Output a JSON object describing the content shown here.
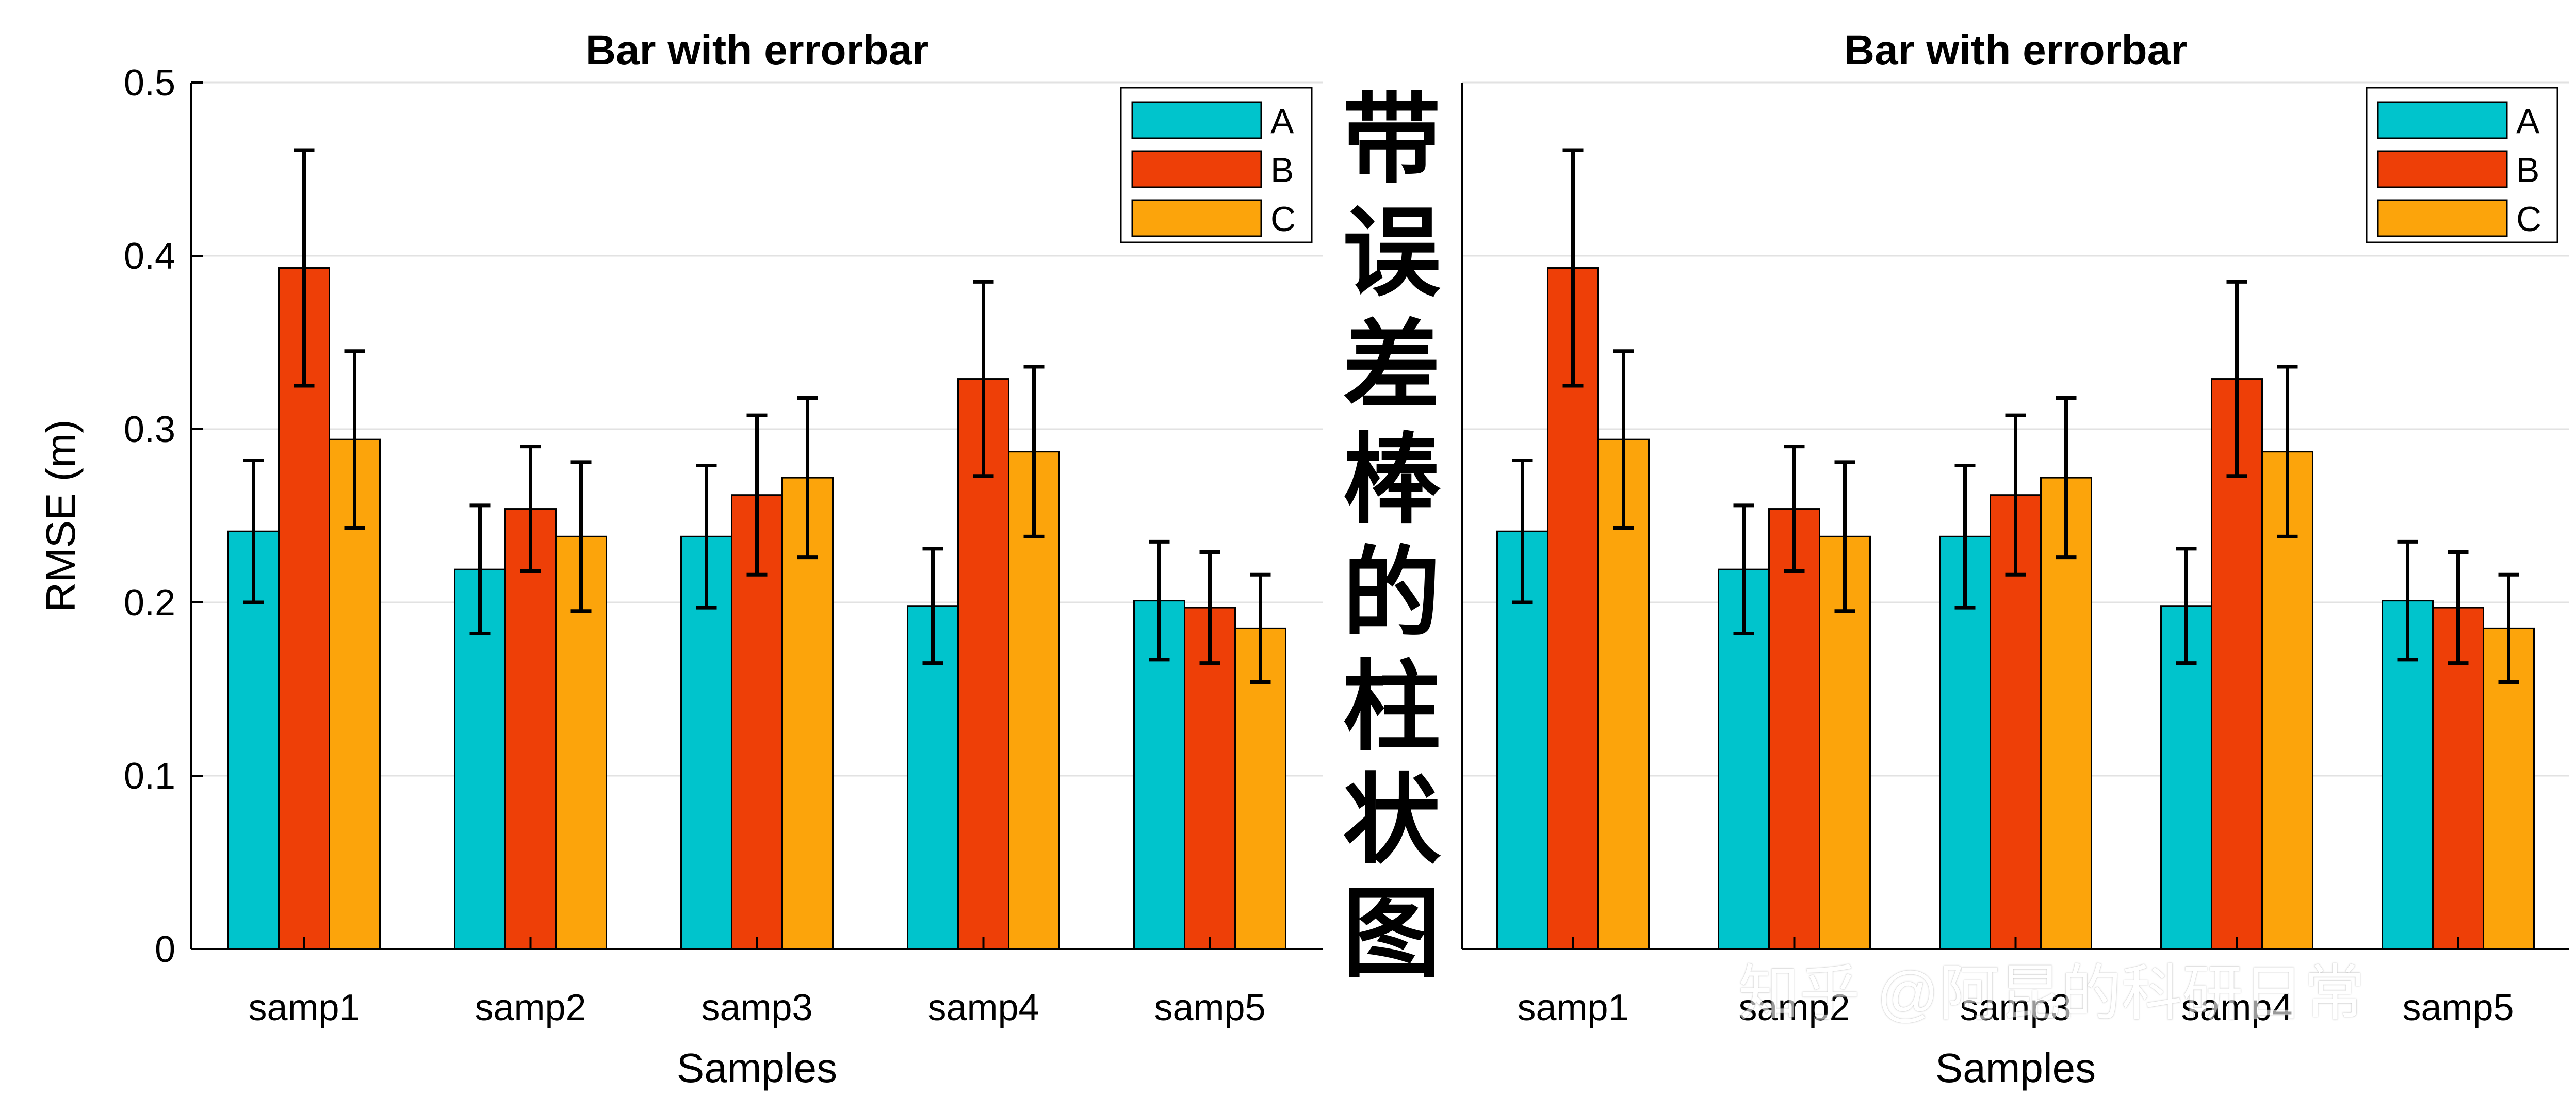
{
  "chart_data": [
    {
      "type": "bar",
      "title": "Bar with errorbar",
      "xlabel": "Samples",
      "ylabel": "RMSE (m)",
      "ylim": [
        0,
        0.5
      ],
      "yticks": [
        "0",
        "0.1",
        "0.2",
        "0.3",
        "0.4",
        "0.5"
      ],
      "grid": true,
      "legend_position": "top-right",
      "categories": [
        "samp1",
        "samp2",
        "samp3",
        "samp4",
        "samp5"
      ],
      "series": [
        {
          "name": "A",
          "color": "#00C4CC",
          "values": [
            0.241,
            0.219,
            0.238,
            0.198,
            0.201
          ],
          "errors": [
            0.041,
            0.037,
            0.041,
            0.033,
            0.034
          ]
        },
        {
          "name": "B",
          "color": "#EE3F07",
          "values": [
            0.393,
            0.254,
            0.262,
            0.329,
            0.197
          ],
          "errors": [
            0.068,
            0.036,
            0.046,
            0.056,
            0.032
          ]
        },
        {
          "name": "C",
          "color": "#FCA40B",
          "values": [
            0.294,
            0.238,
            0.272,
            0.287,
            0.185
          ],
          "errors": [
            0.051,
            0.043,
            0.046,
            0.049,
            0.031
          ]
        }
      ]
    },
    {
      "type": "bar",
      "title": "Bar with errorbar",
      "xlabel": "Samples",
      "ylabel": "",
      "ylim": [
        0,
        0.5
      ],
      "yticks": [],
      "grid": true,
      "legend_position": "top-right",
      "categories": [
        "samp1",
        "samp2",
        "samp3",
        "samp4",
        "samp5"
      ],
      "series": [
        {
          "name": "A",
          "color": "#00C4CC",
          "values": [
            0.241,
            0.219,
            0.238,
            0.198,
            0.201
          ],
          "errors": [
            0.041,
            0.037,
            0.041,
            0.033,
            0.034
          ]
        },
        {
          "name": "B",
          "color": "#EE3F07",
          "values": [
            0.393,
            0.254,
            0.262,
            0.329,
            0.197
          ],
          "errors": [
            0.068,
            0.036,
            0.046,
            0.056,
            0.032
          ]
        },
        {
          "name": "C",
          "color": "#FCA40B",
          "values": [
            0.294,
            0.238,
            0.272,
            0.287,
            0.185
          ],
          "errors": [
            0.051,
            0.043,
            0.046,
            0.049,
            0.031
          ]
        }
      ]
    }
  ],
  "calligraphy": [
    "带",
    "误",
    "差",
    "棒",
    "的",
    "柱",
    "状",
    "图"
  ],
  "watermark": "知乎 @阿昆的科研日常"
}
